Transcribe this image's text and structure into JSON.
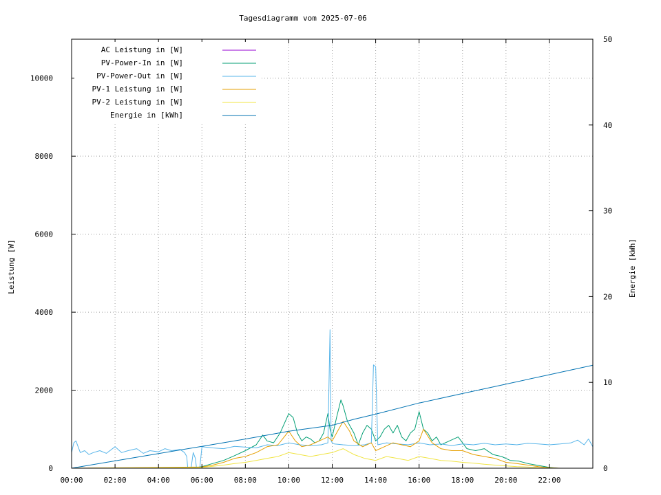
{
  "chart_data": {
    "type": "line",
    "title": "Tagesdiagramm vom 2025-07-06",
    "xlabel": "",
    "ylabel": "Leistung [W]",
    "y2label": "Energie [kWh]",
    "xlim": [
      0,
      24
    ],
    "ylim": [
      0,
      11000
    ],
    "y2lim": [
      0,
      50
    ],
    "x_ticks": [
      "00:00",
      "02:00",
      "04:00",
      "06:00",
      "08:00",
      "10:00",
      "12:00",
      "14:00",
      "16:00",
      "18:00",
      "20:00",
      "22:00"
    ],
    "y_ticks": [
      0,
      2000,
      4000,
      6000,
      8000,
      10000
    ],
    "y2_ticks": [
      0,
      10,
      20,
      30,
      40,
      50
    ],
    "grid": true,
    "legend_position": "top-left",
    "series": [
      {
        "name": "AC Leistung in [W]",
        "color": "#9400d3",
        "axis": "left",
        "x": [
          0,
          24
        ],
        "y": [
          0,
          0
        ]
      },
      {
        "name": "PV-Power-In in [W]",
        "color": "#009e73",
        "axis": "left",
        "x": [
          0,
          5.5,
          6.0,
          6.5,
          7.0,
          7.5,
          8.0,
          8.5,
          8.8,
          9.0,
          9.3,
          9.6,
          10.0,
          10.2,
          10.4,
          10.6,
          10.8,
          11.0,
          11.2,
          11.4,
          11.6,
          11.8,
          11.9,
          12.0,
          12.2,
          12.4,
          12.5,
          12.7,
          13.0,
          13.2,
          13.4,
          13.6,
          13.8,
          14.0,
          14.2,
          14.4,
          14.6,
          14.8,
          15.0,
          15.2,
          15.4,
          15.6,
          15.8,
          16.0,
          16.2,
          16.4,
          16.6,
          16.8,
          17.0,
          17.4,
          17.8,
          18.2,
          18.6,
          19.0,
          19.4,
          19.8,
          20.2,
          20.6,
          21.0,
          21.4,
          21.8,
          22.0,
          22.4,
          23.0,
          24
        ],
        "y": [
          0,
          0,
          40,
          120,
          200,
          320,
          450,
          600,
          850,
          700,
          650,
          900,
          1400,
          1300,
          900,
          700,
          800,
          750,
          650,
          700,
          900,
          1400,
          1000,
          800,
          1300,
          1750,
          1600,
          1200,
          900,
          600,
          900,
          1100,
          1000,
          700,
          800,
          1000,
          1100,
          900,
          1100,
          800,
          700,
          900,
          1000,
          1450,
          1000,
          900,
          700,
          800,
          600,
          700,
          800,
          500,
          450,
          500,
          350,
          300,
          200,
          180,
          120,
          80,
          40,
          20,
          0,
          0,
          0
        ]
      },
      {
        "name": "PV-Power-Out in [W]",
        "color": "#56b4e9",
        "axis": "left",
        "x": [
          0,
          0.1,
          0.2,
          0.4,
          0.6,
          0.8,
          1.0,
          1.3,
          1.6,
          2.0,
          2.3,
          2.6,
          3.0,
          3.3,
          3.6,
          4.0,
          4.3,
          4.6,
          5.0,
          5.2,
          5.3,
          5.35,
          5.5,
          5.6,
          5.7,
          5.75,
          5.9,
          6.0,
          6.5,
          7.0,
          7.5,
          8.0,
          8.5,
          9.0,
          9.5,
          10.0,
          10.5,
          11.0,
          11.5,
          11.8,
          11.9,
          11.95,
          12.0,
          12.1,
          12.5,
          13.0,
          13.5,
          13.8,
          13.9,
          14.0,
          14.1,
          14.5,
          15.0,
          15.5,
          16.0,
          16.5,
          17.0,
          17.5,
          18.0,
          18.5,
          19.0,
          19.5,
          20.0,
          20.5,
          21.0,
          21.5,
          22.0,
          22.5,
          23.0,
          23.3,
          23.6,
          23.8,
          24
        ],
        "y": [
          400,
          650,
          700,
          400,
          450,
          350,
          400,
          450,
          380,
          550,
          400,
          450,
          500,
          380,
          450,
          420,
          500,
          450,
          480,
          400,
          300,
          0,
          0,
          400,
          250,
          0,
          0,
          550,
          520,
          500,
          560,
          540,
          520,
          600,
          580,
          650,
          600,
          580,
          600,
          650,
          3550,
          700,
          650,
          620,
          600,
          580,
          600,
          650,
          2650,
          2600,
          600,
          650,
          620,
          600,
          650,
          600,
          620,
          580,
          620,
          600,
          640,
          600,
          620,
          600,
          640,
          620,
          600,
          620,
          650,
          720,
          600,
          750,
          550
        ]
      },
      {
        "name": "PV-1 Leistung in [W]",
        "color": "#e69f00",
        "axis": "left",
        "x": [
          0,
          6.0,
          6.5,
          7.0,
          7.5,
          8.0,
          8.5,
          9.0,
          9.5,
          10.0,
          10.3,
          10.6,
          11.0,
          11.4,
          11.8,
          12.0,
          12.2,
          12.5,
          12.8,
          13.0,
          13.4,
          13.8,
          14.0,
          14.4,
          14.8,
          15.2,
          15.6,
          16.0,
          16.2,
          16.6,
          17.0,
          17.5,
          18.0,
          18.5,
          19.0,
          19.5,
          20.0,
          20.5,
          21.0,
          21.5,
          22.0,
          22.5,
          24
        ],
        "y": [
          0,
          30,
          80,
          150,
          250,
          300,
          400,
          550,
          600,
          950,
          700,
          550,
          600,
          700,
          800,
          700,
          900,
          1200,
          950,
          700,
          550,
          650,
          450,
          550,
          650,
          600,
          550,
          700,
          1000,
          650,
          500,
          450,
          450,
          350,
          300,
          250,
          150,
          120,
          80,
          40,
          10,
          0,
          0
        ]
      },
      {
        "name": "PV-2 Leistung in [W]",
        "color": "#f0e442",
        "axis": "left",
        "x": [
          0,
          6.0,
          6.5,
          7.0,
          7.5,
          8.0,
          8.5,
          9.0,
          9.5,
          10.0,
          10.5,
          11.0,
          11.5,
          12.0,
          12.5,
          13.0,
          13.5,
          14.0,
          14.5,
          15.0,
          15.5,
          16.0,
          16.5,
          17.0,
          17.5,
          18.0,
          18.5,
          19.0,
          19.5,
          20.0,
          20.5,
          21.0,
          21.5,
          22.0,
          24
        ],
        "y": [
          0,
          20,
          50,
          80,
          120,
          150,
          200,
          250,
          300,
          400,
          350,
          300,
          350,
          400,
          500,
          350,
          250,
          200,
          300,
          250,
          200,
          300,
          250,
          200,
          180,
          150,
          130,
          100,
          80,
          60,
          40,
          30,
          10,
          0,
          0
        ]
      },
      {
        "name": "Energie in [kWh]",
        "color": "#0072b2",
        "axis": "right",
        "x": [
          0,
          2,
          4,
          6,
          8,
          10,
          12,
          13,
          14,
          16,
          18,
          20,
          22,
          24
        ],
        "y": [
          0,
          0.85,
          1.7,
          2.55,
          3.4,
          4.3,
          5.0,
          5.7,
          6.3,
          7.6,
          8.7,
          9.8,
          10.9,
          12.0
        ]
      }
    ]
  }
}
